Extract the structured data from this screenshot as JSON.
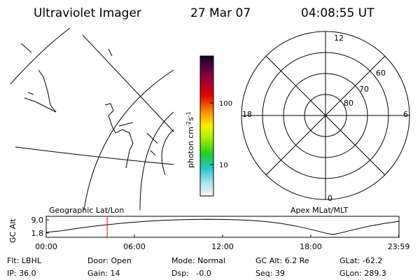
{
  "header": {
    "title": "Ultraviolet Imager",
    "date": "27 Mar 07",
    "time": "04:08:55 UT"
  },
  "colorbar": {
    "label": [
      "photon cm",
      "-2",
      "s",
      "-1"
    ],
    "log": true,
    "lim": [
      3.1,
      575
    ],
    "ticks": [
      100,
      10
    ]
  },
  "polar": {
    "labels": [
      "12",
      "18",
      "6",
      "0",
      "60",
      "70",
      "80"
    ]
  },
  "panels": {
    "left": "Geographic Lat/Lon",
    "right": "Apex MLat/MLT"
  },
  "chart_data": {
    "type": "line",
    "ylabel": "GC Alt",
    "x": [
      0,
      1,
      2,
      3,
      4,
      5,
      6,
      7,
      8,
      9,
      10,
      11,
      12,
      13,
      14,
      15,
      16,
      17,
      18,
      19,
      19.5,
      20,
      21,
      22,
      23,
      24
    ],
    "values": [
      2.2,
      3.0,
      4.2,
      5.3,
      6.2,
      7.0,
      7.7,
      8.3,
      8.7,
      9.0,
      9.2,
      9.3,
      9.2,
      9.0,
      8.6,
      8.0,
      7.0,
      5.6,
      3.8,
      1.8,
      1.0,
      1.8,
      3.8,
      5.6,
      7.0,
      8.2
    ],
    "color": "#000000",
    "marker": 4.148,
    "marker_color": "#e00000",
    "xlim": [
      0,
      24
    ],
    "ylim": [
      -0.5,
      10.9
    ],
    "xticks": [
      {
        "value": 0,
        "label": "00:00"
      },
      {
        "value": 6,
        "label": "06:00"
      },
      {
        "value": 12,
        "label": "12:00"
      },
      {
        "value": 18,
        "label": "18:00"
      },
      {
        "value": 23.98,
        "label": "23:59"
      }
    ],
    "yticks": [
      {
        "value": 9,
        "label": "9.0"
      },
      1.8
    ]
  },
  "footer": [
    [
      "Flt: LBHL",
      "Door: Open",
      "Mode: Normal",
      "GC Alt: 6.2 Re",
      "GLat: -62.2"
    ],
    [
      "IP: 36.0",
      "Gain: 14",
      "Dsp:   -0.0",
      "Seq: 39",
      "GLon: 289.3"
    ]
  ]
}
